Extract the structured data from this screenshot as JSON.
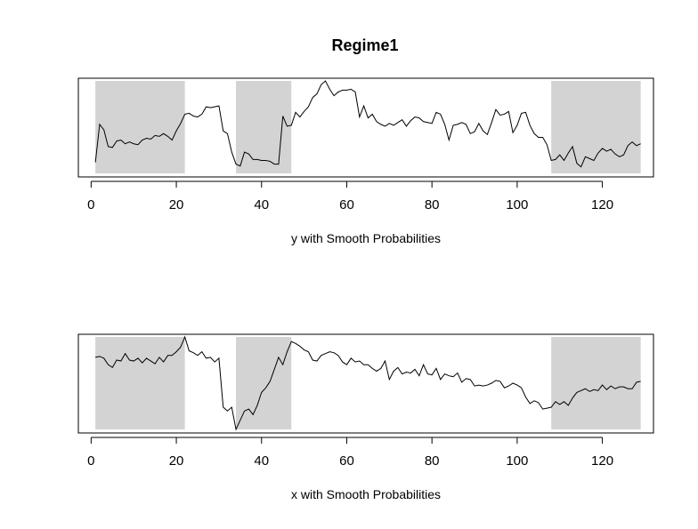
{
  "title": "Regime1",
  "chart_data": [
    {
      "type": "line",
      "xlabel": "y with Smooth Probabilities",
      "x_ticks": [
        0,
        20,
        40,
        60,
        80,
        100,
        120
      ],
      "x_tick_labels": [
        "0",
        "20",
        "40",
        "60",
        "80",
        "100",
        "120"
      ],
      "xlim": [
        -3,
        132
      ],
      "ylim": [
        0,
        1
      ],
      "shaded_regimes": [
        [
          1,
          22
        ],
        [
          34,
          47
        ],
        [
          108,
          129
        ]
      ],
      "shade_color": "#d3d3d3",
      "line_color": "#000000",
      "series": [
        {
          "x": [
            1,
            2,
            3,
            4,
            5,
            6,
            7,
            8,
            9,
            10,
            11,
            12,
            13,
            14,
            15,
            16,
            17,
            18,
            19,
            20,
            21,
            22,
            23,
            24,
            25,
            26,
            27,
            28,
            29,
            30,
            31,
            32,
            33,
            34,
            35,
            36,
            37,
            38,
            39,
            40,
            41,
            42,
            43,
            44,
            45,
            46,
            47,
            48,
            49,
            50,
            51,
            52,
            53,
            54,
            55,
            56,
            57,
            58,
            59,
            60,
            61,
            62,
            63,
            64,
            65,
            66,
            67,
            68,
            69,
            70,
            71,
            72,
            73,
            74,
            75,
            76,
            77,
            78,
            79,
            80,
            81,
            82,
            83,
            84,
            85,
            86,
            87,
            88,
            89,
            90,
            91,
            92,
            93,
            94,
            95,
            96,
            97,
            98,
            99,
            100,
            101,
            102,
            103,
            104,
            105,
            106,
            107,
            108,
            109,
            110,
            111,
            112,
            113,
            114,
            115,
            116,
            117,
            118,
            119,
            120,
            121,
            122,
            123,
            124,
            125,
            126,
            127,
            128,
            129
          ],
          "values": [
            0.12,
            0.53,
            0.47,
            0.29,
            0.28,
            0.35,
            0.36,
            0.32,
            0.34,
            0.32,
            0.31,
            0.36,
            0.38,
            0.37,
            0.41,
            0.4,
            0.43,
            0.4,
            0.36,
            0.46,
            0.54,
            0.64,
            0.65,
            0.62,
            0.61,
            0.64,
            0.72,
            0.71,
            0.72,
            0.73,
            0.46,
            0.43,
            0.23,
            0.1,
            0.08,
            0.23,
            0.21,
            0.15,
            0.15,
            0.14,
            0.14,
            0.13,
            0.1,
            0.1,
            0.62,
            0.51,
            0.52,
            0.66,
            0.61,
            0.67,
            0.72,
            0.82,
            0.86,
            0.96,
            1.0,
            0.91,
            0.84,
            0.88,
            0.9,
            0.9,
            0.91,
            0.88,
            0.61,
            0.73,
            0.6,
            0.64,
            0.56,
            0.53,
            0.51,
            0.54,
            0.52,
            0.55,
            0.58,
            0.51,
            0.57,
            0.61,
            0.6,
            0.56,
            0.55,
            0.54,
            0.66,
            0.64,
            0.53,
            0.36,
            0.52,
            0.53,
            0.55,
            0.53,
            0.43,
            0.45,
            0.54,
            0.46,
            0.42,
            0.55,
            0.69,
            0.63,
            0.64,
            0.67,
            0.44,
            0.52,
            0.65,
            0.66,
            0.52,
            0.43,
            0.39,
            0.39,
            0.31,
            0.14,
            0.15,
            0.2,
            0.14,
            0.22,
            0.29,
            0.11,
            0.07,
            0.18,
            0.16,
            0.14,
            0.22,
            0.27,
            0.24,
            0.26,
            0.21,
            0.18,
            0.2,
            0.3,
            0.34,
            0.3,
            0.32
          ]
        }
      ]
    },
    {
      "type": "line",
      "xlabel": "x with Smooth Probabilities",
      "x_ticks": [
        0,
        20,
        40,
        60,
        80,
        100,
        120
      ],
      "x_tick_labels": [
        "0",
        "20",
        "40",
        "60",
        "80",
        "100",
        "120"
      ],
      "xlim": [
        -3,
        132
      ],
      "ylim": [
        0,
        1
      ],
      "shaded_regimes": [
        [
          1,
          22
        ],
        [
          34,
          47
        ],
        [
          108,
          129
        ]
      ],
      "shade_color": "#d3d3d3",
      "line_color": "#000000",
      "series": [
        {
          "x": [
            1,
            2,
            3,
            4,
            5,
            6,
            7,
            8,
            9,
            10,
            11,
            12,
            13,
            14,
            15,
            16,
            17,
            18,
            19,
            20,
            21,
            22,
            23,
            24,
            25,
            26,
            27,
            28,
            29,
            30,
            31,
            32,
            33,
            34,
            35,
            36,
            37,
            38,
            39,
            40,
            41,
            42,
            43,
            44,
            45,
            46,
            47,
            48,
            49,
            50,
            51,
            52,
            53,
            54,
            55,
            56,
            57,
            58,
            59,
            60,
            61,
            62,
            63,
            64,
            65,
            66,
            67,
            68,
            69,
            70,
            71,
            72,
            73,
            74,
            75,
            76,
            77,
            78,
            79,
            80,
            81,
            82,
            83,
            84,
            85,
            86,
            87,
            88,
            89,
            90,
            91,
            92,
            93,
            94,
            95,
            96,
            97,
            98,
            99,
            100,
            101,
            102,
            103,
            104,
            105,
            106,
            107,
            108,
            109,
            110,
            111,
            112,
            113,
            114,
            115,
            116,
            117,
            118,
            119,
            120,
            121,
            122,
            123,
            124,
            125,
            126,
            127,
            128,
            129
          ],
          "values": [
            0.78,
            0.79,
            0.77,
            0.7,
            0.67,
            0.75,
            0.74,
            0.82,
            0.75,
            0.74,
            0.77,
            0.72,
            0.77,
            0.74,
            0.71,
            0.78,
            0.73,
            0.8,
            0.8,
            0.84,
            0.89,
            1.0,
            0.85,
            0.83,
            0.8,
            0.84,
            0.77,
            0.78,
            0.73,
            0.77,
            0.24,
            0.2,
            0.24,
            0.0,
            0.1,
            0.2,
            0.22,
            0.16,
            0.26,
            0.4,
            0.45,
            0.52,
            0.65,
            0.78,
            0.7,
            0.84,
            0.95,
            0.93,
            0.9,
            0.86,
            0.84,
            0.75,
            0.74,
            0.8,
            0.82,
            0.84,
            0.83,
            0.8,
            0.73,
            0.7,
            0.77,
            0.73,
            0.74,
            0.7,
            0.7,
            0.66,
            0.63,
            0.66,
            0.74,
            0.54,
            0.63,
            0.67,
            0.6,
            0.62,
            0.61,
            0.65,
            0.58,
            0.7,
            0.6,
            0.59,
            0.66,
            0.54,
            0.6,
            0.58,
            0.57,
            0.61,
            0.51,
            0.55,
            0.54,
            0.47,
            0.48,
            0.47,
            0.48,
            0.5,
            0.53,
            0.52,
            0.45,
            0.47,
            0.5,
            0.48,
            0.45,
            0.35,
            0.28,
            0.31,
            0.29,
            0.22,
            0.23,
            0.24,
            0.3,
            0.27,
            0.3,
            0.26,
            0.34,
            0.4,
            0.42,
            0.44,
            0.41,
            0.43,
            0.42,
            0.48,
            0.43,
            0.47,
            0.44,
            0.46,
            0.46,
            0.44,
            0.44,
            0.51,
            0.52
          ]
        }
      ]
    }
  ]
}
